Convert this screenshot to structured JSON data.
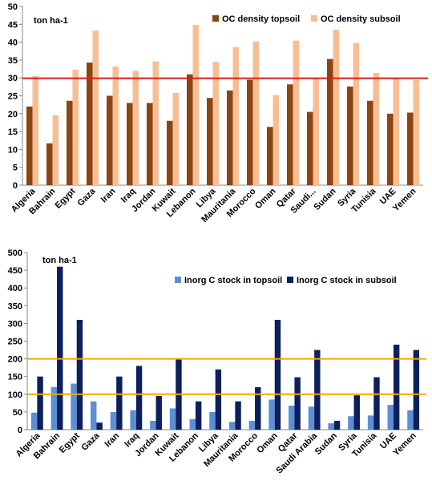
{
  "chart_data": [
    {
      "type": "bar",
      "unit_label": "ton ha-1",
      "categories": [
        "Algeria",
        "Bahrain",
        "Egypt",
        "Gaza",
        "Iran",
        "Iraq",
        "Jordan",
        "Kuwait",
        "Lebanon",
        "Libya",
        "Mauritania",
        "Morocco",
        "Oman",
        "Qatar",
        "Saudi...",
        "Sudan",
        "Syria",
        "Tunisia",
        "UAE",
        "Yemen"
      ],
      "series": [
        {
          "name": "OC density topsoil",
          "color": "#8B4513",
          "values": [
            22.0,
            11.7,
            23.6,
            34.3,
            25.0,
            23.0,
            23.0,
            18.0,
            31.0,
            24.4,
            26.5,
            29.5,
            16.3,
            28.2,
            20.5,
            35.3,
            27.6,
            23.6,
            20.0,
            20.3
          ]
        },
        {
          "name": "OC density subsoil",
          "color": "#F7BE94",
          "values": [
            30.5,
            19.6,
            32.3,
            43.2,
            33.2,
            32.0,
            34.6,
            25.8,
            44.8,
            34.5,
            38.6,
            40.2,
            25.2,
            40.4,
            30.0,
            43.5,
            39.8,
            31.4,
            30.0,
            29.4
          ]
        }
      ],
      "reference_lines": [
        {
          "value": 29.9,
          "color": "#E31A1C"
        }
      ],
      "ylim": [
        0,
        50
      ],
      "yticks": [
        0,
        5,
        10,
        15,
        20,
        25,
        30,
        35,
        40,
        45,
        50
      ],
      "legend": "top-right"
    },
    {
      "type": "bar",
      "unit_label": "ton ha-1",
      "categories": [
        "Algeria",
        "Bahrain",
        "Egypt",
        "Gaza",
        "Iran",
        "Iraq",
        "Jordan",
        "Kuwait",
        "Lebanon",
        "Libya",
        "Mauritania",
        "Morocco",
        "Oman",
        "Qatar",
        "Saudi Arabia",
        "Sudan",
        "Syria",
        "Tunisia",
        "UAE",
        "Yemen"
      ],
      "series": [
        {
          "name": "Inorg C stock in topsoil",
          "color": "#5B8FD6",
          "values": [
            48,
            120,
            130,
            80,
            50,
            55,
            25,
            60,
            30,
            50,
            22,
            25,
            85,
            68,
            65,
            18,
            38,
            40,
            70,
            55
          ]
        },
        {
          "name": "Inorg C stock in subsoil",
          "color": "#0D1F5C",
          "values": [
            150,
            460,
            310,
            20,
            150,
            180,
            95,
            200,
            80,
            170,
            80,
            120,
            310,
            148,
            225,
            25,
            97,
            148,
            240,
            225
          ]
        }
      ],
      "reference_lines": [
        {
          "value": 200,
          "color": "#F2A900"
        },
        {
          "value": 100,
          "color": "#F2A900"
        }
      ],
      "ylim": [
        0,
        500
      ],
      "yticks": [
        0,
        50,
        100,
        150,
        200,
        250,
        300,
        350,
        400,
        450,
        500
      ],
      "legend": "top-right"
    }
  ]
}
